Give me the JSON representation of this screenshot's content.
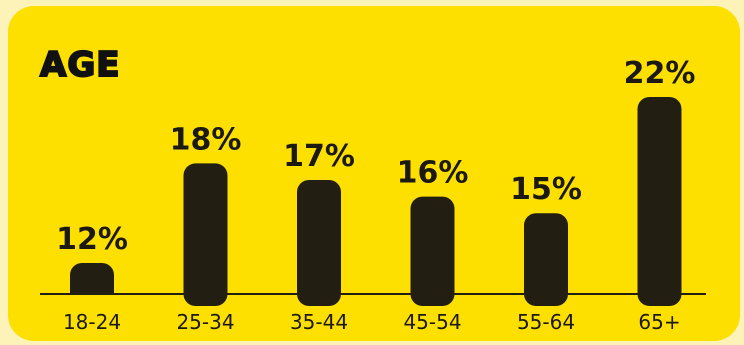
{
  "chart_data": {
    "type": "bar",
    "title": "AGE",
    "categories": [
      "18-24",
      "25-34",
      "35-44",
      "45-54",
      "55-64",
      "65+"
    ],
    "values": [
      12,
      18,
      17,
      16,
      15,
      22
    ],
    "value_labels": [
      "12%",
      "18%",
      "17%",
      "16%",
      "15%",
      "22%"
    ],
    "unit": "%",
    "grid": false,
    "legend": "none"
  },
  "colors": {
    "page_background": "#fdf2b8",
    "card_background": "#fde000",
    "bar": "#221f12",
    "text": "#1c1a10"
  }
}
